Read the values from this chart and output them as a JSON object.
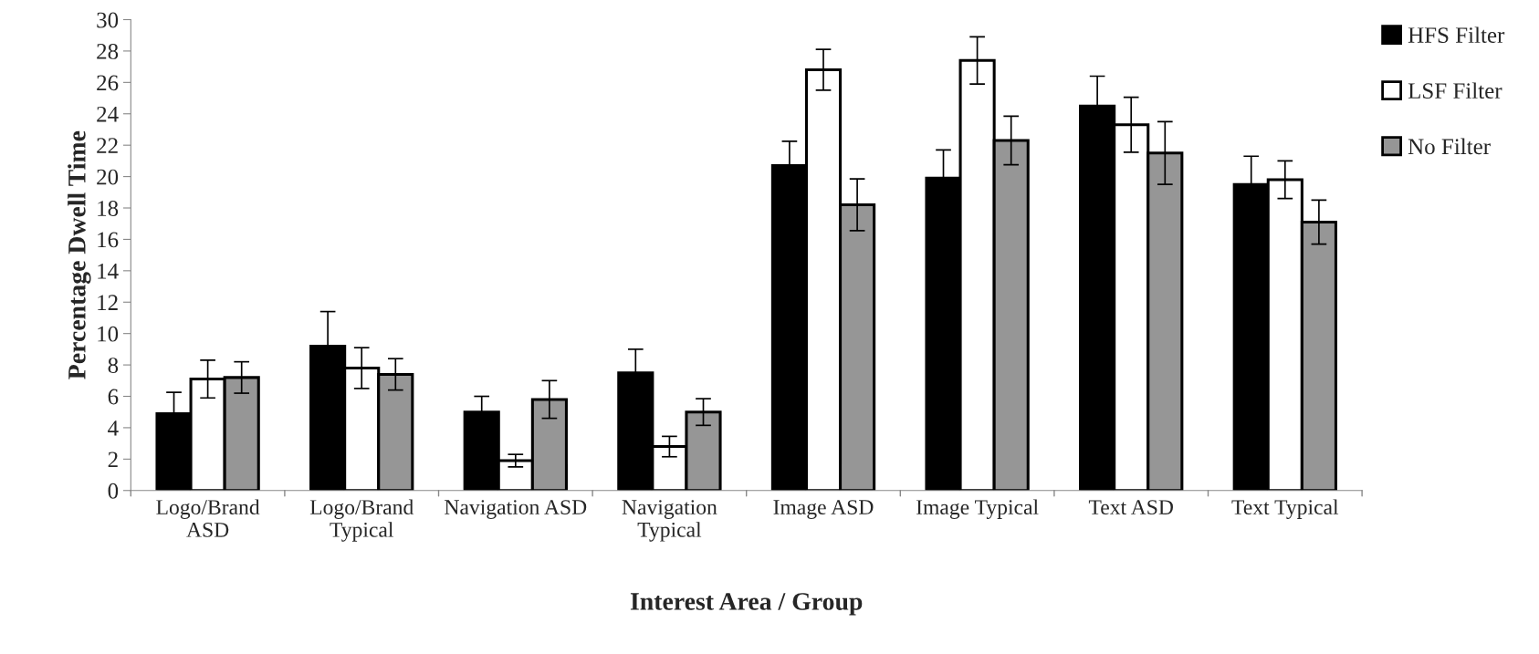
{
  "chart_data": {
    "type": "bar",
    "xlabel": "Interest Area / Group",
    "ylabel": "Percentage Dwell Time",
    "categories": [
      "Logo/Brand\nASD",
      "Logo/Brand\nTypical",
      "Navigation ASD",
      "Navigation\nTypical",
      "Image ASD",
      "Image Typical",
      "Text ASD",
      "Text Typical"
    ],
    "series": [
      {
        "name": "HFS Filter",
        "color": "#000000",
        "values": [
          4.9,
          9.2,
          5.0,
          7.5,
          20.7,
          19.9,
          24.5,
          19.5
        ],
        "errors": [
          1.35,
          2.2,
          1.0,
          1.5,
          1.55,
          1.8,
          1.9,
          1.8
        ]
      },
      {
        "name": "LSF Filter",
        "color": "#ffffff",
        "values": [
          7.1,
          7.8,
          1.9,
          2.8,
          26.8,
          27.4,
          23.3,
          19.8
        ],
        "errors": [
          1.2,
          1.3,
          0.4,
          0.65,
          1.3,
          1.5,
          1.75,
          1.2
        ]
      },
      {
        "name": "No Filter",
        "color": "#969696",
        "values": [
          7.2,
          7.4,
          5.8,
          5.0,
          18.2,
          22.3,
          21.5,
          17.1
        ],
        "errors": [
          1.0,
          1.0,
          1.2,
          0.85,
          1.65,
          1.55,
          2.0,
          1.4
        ]
      }
    ],
    "ylim": [
      0,
      30
    ],
    "yticks": [
      0,
      2,
      4,
      6,
      8,
      10,
      12,
      14,
      16,
      18,
      20,
      22,
      24,
      26,
      28,
      30
    ],
    "grid": false,
    "legend": "top right"
  }
}
